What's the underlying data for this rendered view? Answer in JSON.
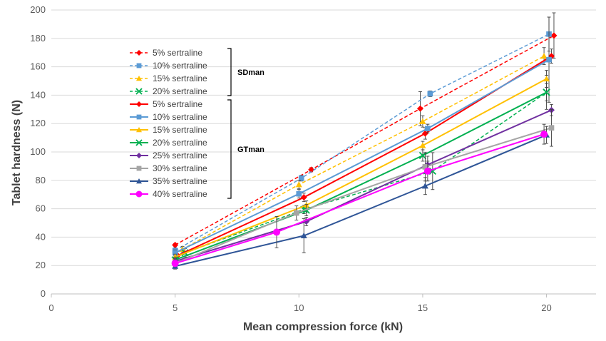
{
  "chart_data": {
    "type": "line",
    "xlabel": "Mean compression force (kN)",
    "ylabel": "Tablet hardness (N)",
    "xlim": [
      0,
      22
    ],
    "ylim": [
      0,
      200
    ],
    "xticks": [
      0,
      5,
      10,
      15,
      20
    ],
    "yticks": [
      0,
      20,
      40,
      60,
      80,
      100,
      120,
      140,
      160,
      180,
      200
    ],
    "grid": "horizontal",
    "legend_position": "upper-left",
    "groups": [
      {
        "name": "SDman",
        "series_indices": [
          0,
          1,
          2,
          3
        ]
      },
      {
        "name": "GTman",
        "series_indices": [
          4,
          5,
          6,
          7,
          8,
          9,
          10,
          11
        ]
      }
    ],
    "series": [
      {
        "name": "5% sertraline",
        "group": "SDman",
        "color": "#FF0000",
        "marker": "diamond",
        "dashed": true,
        "points": [
          [
            5.0,
            34.5,
            1
          ],
          [
            10.5,
            87.5,
            1.5
          ],
          [
            14.9,
            130.5,
            12
          ],
          [
            20.3,
            182,
            16
          ]
        ]
      },
      {
        "name": "10% sertraline",
        "group": "SDman",
        "color": "#5B9BD5",
        "marker": "square",
        "dashed": true,
        "points": [
          [
            5.0,
            30.5,
            2
          ],
          [
            10.1,
            81.5,
            2
          ],
          [
            15.3,
            141,
            2
          ],
          [
            20.1,
            183,
            12
          ]
        ]
      },
      {
        "name": "15% sertraline",
        "group": "SDman",
        "color": "#FFC000",
        "marker": "triangle",
        "dashed": true,
        "points": [
          [
            5.3,
            31.5,
            2
          ],
          [
            10.0,
            77,
            3
          ],
          [
            15.0,
            121.5,
            4
          ],
          [
            19.9,
            167.5,
            6
          ]
        ]
      },
      {
        "name": "20% sertraline",
        "group": "SDman",
        "color": "#00B050",
        "marker": "x",
        "dashed": true,
        "points": [
          [
            5.4,
            29,
            3
          ],
          [
            10.2,
            59.5,
            3
          ],
          [
            15.4,
            86.5,
            13
          ],
          [
            20.0,
            142,
            12
          ]
        ]
      },
      {
        "name": "5% sertraline",
        "group": "GTman",
        "color": "#FF0000",
        "marker": "diamond",
        "dashed": false,
        "points": [
          [
            5.1,
            27,
            3
          ],
          [
            10.2,
            68,
            3
          ],
          [
            15.1,
            113,
            4
          ],
          [
            20.2,
            167.5,
            5
          ]
        ]
      },
      {
        "name": "10% sertraline",
        "group": "GTman",
        "color": "#5B9BD5",
        "marker": "square",
        "dashed": false,
        "points": [
          [
            5.0,
            29,
            2
          ],
          [
            10.0,
            70.5,
            3
          ],
          [
            15.2,
            116.5,
            3
          ],
          [
            20.1,
            165,
            30
          ]
        ]
      },
      {
        "name": "15% sertraline",
        "group": "GTman",
        "color": "#FFC000",
        "marker": "triangle",
        "dashed": false,
        "points": [
          [
            5.0,
            26,
            2
          ],
          [
            10.3,
            62.5,
            3
          ],
          [
            15.0,
            104.5,
            3
          ],
          [
            20.0,
            151.5,
            6
          ]
        ]
      },
      {
        "name": "20% sertraline",
        "group": "GTman",
        "color": "#00B050",
        "marker": "x",
        "dashed": false,
        "points": [
          [
            5.0,
            24,
            2
          ],
          [
            10.3,
            59,
            4
          ],
          [
            15.0,
            97.5,
            4
          ],
          [
            20.0,
            142,
            6
          ]
        ]
      },
      {
        "name": "25% sertraline",
        "group": "GTman",
        "color": "#7030A0",
        "marker": "diamond",
        "dashed": false,
        "points": [
          [
            5.0,
            23,
            2
          ],
          [
            10.3,
            51,
            3
          ],
          [
            15.2,
            91,
            6
          ],
          [
            20.2,
            129.5,
            4
          ]
        ]
      },
      {
        "name": "30% sertraline",
        "group": "GTman",
        "color": "#A5A5A5",
        "marker": "square",
        "dashed": false,
        "points": [
          [
            5.0,
            21.5,
            2
          ],
          [
            9.9,
            57,
            5
          ],
          [
            15.1,
            89.5,
            10
          ],
          [
            20.2,
            117,
            13
          ]
        ]
      },
      {
        "name": "35% sertraline",
        "group": "GTman",
        "color": "#2F5597",
        "marker": "triangle",
        "dashed": false,
        "points": [
          [
            5.0,
            19.5,
            2
          ],
          [
            10.2,
            41,
            12
          ],
          [
            15.1,
            76,
            6
          ],
          [
            20.0,
            112,
            6
          ]
        ]
      },
      {
        "name": "40% sertraline",
        "group": "GTman",
        "color": "#FF00FF",
        "marker": "circle",
        "dashed": false,
        "points": [
          [
            5.0,
            21.5,
            2
          ],
          [
            9.1,
            43.5,
            11
          ],
          [
            15.2,
            86.5,
            7
          ],
          [
            19.9,
            112.5,
            7
          ]
        ]
      }
    ]
  }
}
